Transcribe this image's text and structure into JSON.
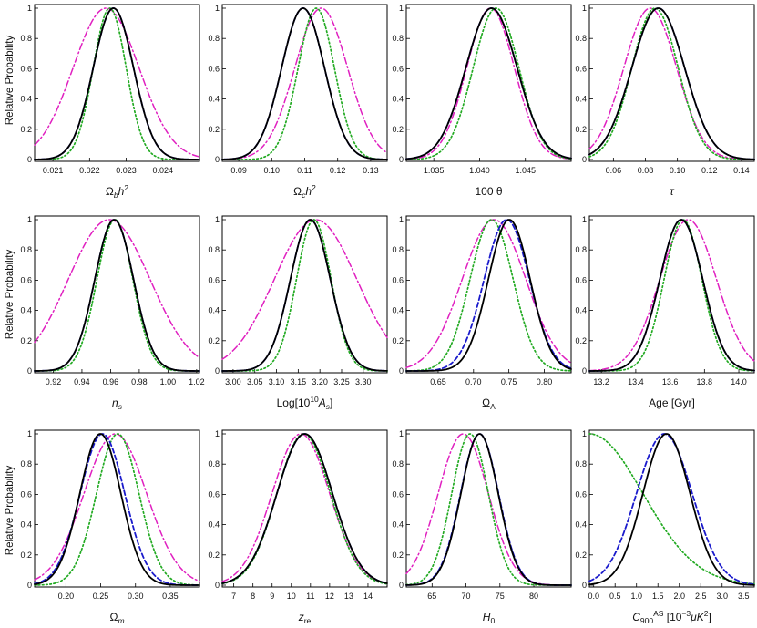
{
  "figure": {
    "ylabel": "Relative Probability"
  },
  "legend_styles": {
    "black": {
      "color": "#000000",
      "dash": "solid"
    },
    "blue": {
      "color": "#1a1acc",
      "dash": "dash"
    },
    "green": {
      "color": "#22aa22",
      "dash": "dot"
    },
    "magenta": {
      "color": "#e020c0",
      "dash": "dashdot"
    }
  },
  "chart_data": [
    {
      "type": "line",
      "xlabel": "Ω_b h^2",
      "ylim": [
        0,
        1
      ],
      "yticks": [
        0,
        0.2,
        0.4,
        0.6,
        0.8,
        1
      ],
      "xlim": [
        0.0205,
        0.025
      ],
      "xticks": [
        0.021,
        0.022,
        0.023,
        0.024
      ],
      "xtick_labels": [
        "0.021",
        "0.022",
        "0.023",
        "0.024"
      ],
      "series": [
        {
          "name": "black",
          "mean": 0.02265,
          "sigma": 0.00055
        },
        {
          "name": "blue",
          "mean": 0.02265,
          "sigma": 0.00055
        },
        {
          "name": "green",
          "mean": 0.02255,
          "sigma": 0.00045
        },
        {
          "name": "magenta",
          "mean": 0.02245,
          "sigma": 0.0009
        }
      ]
    },
    {
      "type": "line",
      "xlabel": "Ω_c h^2",
      "ylim": [
        0,
        1
      ],
      "yticks": [
        0,
        0.2,
        0.4,
        0.6,
        0.8,
        1
      ],
      "xlim": [
        0.085,
        0.135
      ],
      "xticks": [
        0.09,
        0.1,
        0.11,
        0.12,
        0.13
      ],
      "xtick_labels": [
        "0.09",
        "0.10",
        "0.11",
        "0.12",
        "0.13"
      ],
      "series": [
        {
          "name": "black",
          "mean": 0.1095,
          "sigma": 0.0065
        },
        {
          "name": "blue",
          "mean": 0.1095,
          "sigma": 0.0065
        },
        {
          "name": "green",
          "mean": 0.1135,
          "sigma": 0.0055
        },
        {
          "name": "magenta",
          "mean": 0.115,
          "sigma": 0.008
        }
      ]
    },
    {
      "type": "line",
      "xlabel": "100 θ",
      "ylim": [
        0,
        1
      ],
      "yticks": [
        0,
        0.2,
        0.4,
        0.6,
        0.8,
        1
      ],
      "xlim": [
        1.032,
        1.05
      ],
      "xticks": [
        1.035,
        1.04,
        1.045
      ],
      "xtick_labels": [
        "1.035",
        "1.040",
        "1.045"
      ],
      "series": [
        {
          "name": "black",
          "mean": 1.0413,
          "sigma": 0.0028
        },
        {
          "name": "blue",
          "mean": 1.0413,
          "sigma": 0.0028
        },
        {
          "name": "green",
          "mean": 1.0418,
          "sigma": 0.0025
        },
        {
          "name": "magenta",
          "mean": 1.0412,
          "sigma": 0.0026
        }
      ]
    },
    {
      "type": "line",
      "xlabel": "τ",
      "ylim": [
        0,
        1
      ],
      "yticks": [
        0,
        0.2,
        0.4,
        0.6,
        0.8,
        1
      ],
      "xlim": [
        0.045,
        0.148
      ],
      "xticks": [
        0.06,
        0.08,
        0.1,
        0.12,
        0.14
      ],
      "xtick_labels": [
        "0.06",
        "0.08",
        "0.10",
        "0.12",
        "0.14"
      ],
      "series": [
        {
          "name": "black",
          "mean": 0.088,
          "sigma": 0.0165
        },
        {
          "name": "blue",
          "mean": 0.088,
          "sigma": 0.0165
        },
        {
          "name": "green",
          "mean": 0.086,
          "sigma": 0.0145
        },
        {
          "name": "magenta",
          "mean": 0.083,
          "sigma": 0.0165
        }
      ]
    },
    {
      "type": "line",
      "xlabel": "n_s",
      "ylim": [
        0,
        1
      ],
      "yticks": [
        0,
        0.2,
        0.4,
        0.6,
        0.8,
        1
      ],
      "xlim": [
        0.907,
        1.022
      ],
      "xticks": [
        0.92,
        0.94,
        0.96,
        0.98,
        1.0,
        1.02
      ],
      "xtick_labels": [
        "0.92",
        "0.94",
        "0.96",
        "0.98",
        "1.00",
        "1.02"
      ],
      "series": [
        {
          "name": "black",
          "mean": 0.9625,
          "sigma": 0.0135
        },
        {
          "name": "blue",
          "mean": 0.9625,
          "sigma": 0.0135
        },
        {
          "name": "green",
          "mean": 0.963,
          "sigma": 0.0125
        },
        {
          "name": "magenta",
          "mean": 0.959,
          "sigma": 0.0285
        }
      ]
    },
    {
      "type": "line",
      "xlabel": "Log[10^10 A_s]",
      "ylim": [
        0,
        1
      ],
      "yticks": [
        0,
        0.2,
        0.4,
        0.6,
        0.8,
        1
      ],
      "xlim": [
        2.975,
        3.355
      ],
      "xticks": [
        3.0,
        3.05,
        3.1,
        3.15,
        3.2,
        3.25,
        3.3
      ],
      "xtick_labels": [
        "3.00",
        "3.05",
        "3.10",
        "3.15",
        "3.20",
        "3.25",
        "3.30"
      ],
      "series": [
        {
          "name": "black",
          "mean": 3.178,
          "sigma": 0.046
        },
        {
          "name": "blue",
          "mean": 3.178,
          "sigma": 0.046
        },
        {
          "name": "green",
          "mean": 3.186,
          "sigma": 0.04
        },
        {
          "name": "magenta",
          "mean": 3.19,
          "sigma": 0.095
        }
      ]
    },
    {
      "type": "line",
      "xlabel": "Ω_Λ",
      "ylim": [
        0,
        1
      ],
      "yticks": [
        0,
        0.2,
        0.4,
        0.6,
        0.8,
        1
      ],
      "xlim": [
        0.605,
        0.838
      ],
      "xticks": [
        0.65,
        0.7,
        0.75,
        0.8
      ],
      "xtick_labels": [
        "0.65",
        "0.70",
        "0.75",
        "0.80"
      ],
      "series": [
        {
          "name": "black",
          "mean": 0.7505,
          "sigma": 0.0295
        },
        {
          "name": "blue",
          "mean": 0.747,
          "sigma": 0.032
        },
        {
          "name": "green",
          "mean": 0.7255,
          "sigma": 0.0305
        },
        {
          "name": "magenta",
          "mean": 0.729,
          "sigma": 0.045
        }
      ]
    },
    {
      "type": "line",
      "xlabel": "Age [Gyr]",
      "ylim": [
        0,
        1
      ],
      "yticks": [
        0,
        0.2,
        0.4,
        0.6,
        0.8,
        1
      ],
      "xlim": [
        13.13,
        14.09
      ],
      "xticks": [
        13.2,
        13.4,
        13.6,
        13.8,
        14.0
      ],
      "xtick_labels": [
        "13.2",
        "13.4",
        "13.6",
        "13.8",
        "14.0"
      ],
      "series": [
        {
          "name": "black",
          "mean": 13.665,
          "sigma": 0.125
        },
        {
          "name": "blue",
          "mean": 13.665,
          "sigma": 0.125
        },
        {
          "name": "green",
          "mean": 13.675,
          "sigma": 0.11
        },
        {
          "name": "magenta",
          "mean": 13.705,
          "sigma": 0.165
        }
      ]
    },
    {
      "type": "line",
      "xlabel": "Ω_m",
      "ylim": [
        0,
        1
      ],
      "yticks": [
        0,
        0.2,
        0.4,
        0.6,
        0.8,
        1
      ],
      "xlim": [
        0.155,
        0.392
      ],
      "xticks": [
        0.2,
        0.25,
        0.3,
        0.35
      ],
      "xtick_labels": [
        "0.20",
        "0.25",
        "0.30",
        "0.35"
      ],
      "series": [
        {
          "name": "black",
          "mean": 0.2495,
          "sigma": 0.0295
        },
        {
          "name": "blue",
          "mean": 0.2525,
          "sigma": 0.032
        },
        {
          "name": "green",
          "mean": 0.2745,
          "sigma": 0.0305
        },
        {
          "name": "magenta",
          "mean": 0.271,
          "sigma": 0.045
        }
      ]
    },
    {
      "type": "line",
      "xlabel": "z_re",
      "ylim": [
        0,
        1
      ],
      "yticks": [
        0,
        0.2,
        0.4,
        0.6,
        0.8,
        1
      ],
      "xlim": [
        6.4,
        15.0
      ],
      "xticks": [
        7,
        8,
        9,
        10,
        11,
        12,
        13,
        14
      ],
      "xtick_labels": [
        "7",
        "8",
        "9",
        "10",
        "11",
        "12",
        "13",
        "14"
      ],
      "series": [
        {
          "name": "black",
          "mean": 10.7,
          "sigma": 1.45
        },
        {
          "name": "blue",
          "mean": 10.7,
          "sigma": 1.45
        },
        {
          "name": "green",
          "mean": 10.65,
          "sigma": 1.4
        },
        {
          "name": "magenta",
          "mean": 10.5,
          "sigma": 1.5
        }
      ]
    },
    {
      "type": "line",
      "xlabel": "H_0",
      "ylim": [
        0,
        1
      ],
      "yticks": [
        0,
        0.2,
        0.4,
        0.6,
        0.8,
        1
      ],
      "xlim": [
        61.2,
        85.5
      ],
      "xticks": [
        65,
        70,
        75,
        80
      ],
      "xtick_labels": [
        "65",
        "70",
        "75",
        "80"
      ],
      "series": [
        {
          "name": "black",
          "mean": 72.0,
          "sigma": 2.75
        },
        {
          "name": "blue",
          "mean": 72.0,
          "sigma": 2.8
        },
        {
          "name": "green",
          "mean": 70.6,
          "sigma": 2.7
        },
        {
          "name": "magenta",
          "mean": 69.6,
          "sigma": 3.7
        }
      ]
    },
    {
      "type": "line",
      "xlabel": "C_900^AS [10^-3 μK^2]",
      "ylim": [
        0,
        1
      ],
      "yticks": [
        0,
        0.2,
        0.4,
        0.6,
        0.8,
        1
      ],
      "xlim": [
        -0.1,
        3.75
      ],
      "xticks": [
        0,
        0.5,
        1.0,
        1.5,
        2.0,
        2.5,
        3.0,
        3.5
      ],
      "xtick_labels": [
        "0.0",
        "0.5",
        "1.0",
        "1.5",
        "2.0",
        "2.5",
        "3.0",
        "3.5"
      ],
      "series": [
        {
          "name": "black",
          "mean": 1.7,
          "sigma": 0.55
        },
        {
          "name": "blue",
          "mean": 1.65,
          "sigma": 0.65
        },
        {
          "name": "green",
          "mean": -0.1,
          "sigma": 1.25
        },
        {
          "name": "magenta",
          "mean": null,
          "sigma": null
        }
      ]
    }
  ]
}
